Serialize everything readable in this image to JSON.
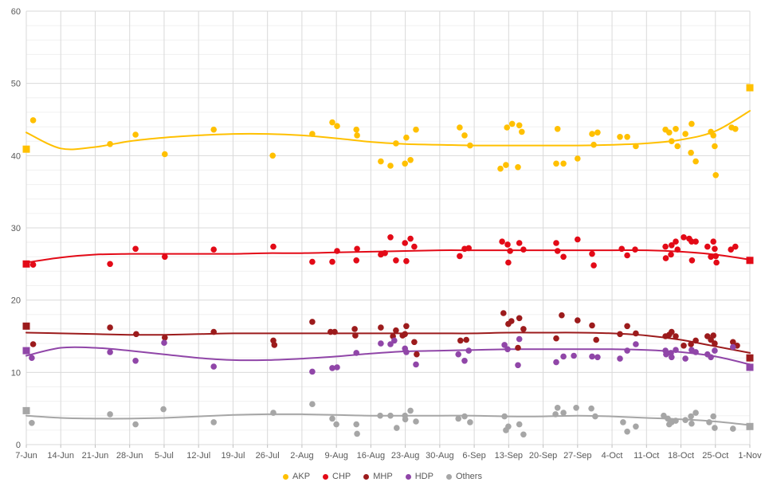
{
  "chart_data": {
    "type": "scatter",
    "title": "",
    "grid": "on",
    "legend_position": "bottom",
    "x_axis": {
      "tick_labels": [
        "7-Jun",
        "14-Jun",
        "21-Jun",
        "28-Jun",
        "5-Jul",
        "12-Jul",
        "19-Jul",
        "26-Jul",
        "2-Aug",
        "9-Aug",
        "16-Aug",
        "23-Aug",
        "30-Aug",
        "6-Sep",
        "13-Sep",
        "20-Sep",
        "27-Sep",
        "4-Oct",
        "11-Oct",
        "18-Oct",
        "25-Oct",
        "1-Nov"
      ]
    },
    "y_axis": {
      "min": 0,
      "max": 60,
      "major_step": 10,
      "minor_step": 2,
      "tick_labels": [
        "0",
        "10",
        "20",
        "30",
        "40",
        "50",
        "60"
      ]
    },
    "series": [
      {
        "name": "AKP",
        "color": "#FFC000",
        "trend": [
          43.2,
          41.0,
          41.2,
          42.0,
          42.5,
          42.8,
          43.0,
          43.0,
          42.8,
          42.4,
          41.9,
          41.6,
          41.5,
          41.4,
          41.4,
          41.4,
          41.4,
          41.5,
          41.7,
          42.2,
          43.4,
          46.2
        ],
        "results": [
          [
            0,
            40.9
          ],
          [
            21,
            49.4
          ]
        ],
        "points": [
          [
            0.2,
            44.9
          ],
          [
            2.43,
            41.6
          ],
          [
            3.17,
            42.9
          ],
          [
            4.02,
            40.2
          ],
          [
            5.44,
            43.6
          ],
          [
            7.15,
            40.0
          ],
          [
            8.3,
            43.0
          ],
          [
            8.88,
            44.6
          ],
          [
            9.02,
            44.1
          ],
          [
            9.58,
            43.6
          ],
          [
            9.6,
            42.8
          ],
          [
            10.29,
            39.2
          ],
          [
            10.57,
            38.6
          ],
          [
            10.73,
            41.7
          ],
          [
            10.99,
            38.9
          ],
          [
            11.03,
            42.5
          ],
          [
            11.15,
            39.4
          ],
          [
            11.31,
            43.6
          ],
          [
            12.58,
            43.9
          ],
          [
            12.72,
            42.8
          ],
          [
            12.88,
            41.4
          ],
          [
            13.76,
            38.2
          ],
          [
            13.92,
            38.7
          ],
          [
            13.95,
            43.9
          ],
          [
            14.1,
            44.4
          ],
          [
            14.27,
            38.4
          ],
          [
            14.31,
            44.2
          ],
          [
            14.38,
            43.3
          ],
          [
            15.38,
            38.9
          ],
          [
            15.42,
            43.7
          ],
          [
            15.59,
            38.9
          ],
          [
            16.0,
            39.6
          ],
          [
            16.42,
            43.0
          ],
          [
            16.47,
            41.5
          ],
          [
            16.58,
            43.2
          ],
          [
            17.23,
            42.6
          ],
          [
            17.44,
            42.6
          ],
          [
            17.69,
            41.3
          ],
          [
            18.55,
            43.6
          ],
          [
            18.66,
            43.2
          ],
          [
            18.73,
            42.0
          ],
          [
            18.85,
            43.7
          ],
          [
            18.9,
            41.3
          ],
          [
            19.13,
            43.0
          ],
          [
            19.29,
            40.4
          ],
          [
            19.31,
            44.4
          ],
          [
            19.43,
            39.2
          ],
          [
            19.87,
            43.3
          ],
          [
            19.94,
            42.8
          ],
          [
            19.98,
            41.3
          ],
          [
            20.01,
            37.3
          ],
          [
            20.47,
            43.9
          ],
          [
            20.58,
            43.7
          ]
        ]
      },
      {
        "name": "CHP",
        "color": "#E30A17",
        "trend": [
          25.2,
          25.9,
          26.3,
          26.4,
          26.4,
          26.4,
          26.4,
          26.5,
          26.5,
          26.6,
          26.7,
          26.8,
          26.9,
          26.9,
          26.9,
          26.9,
          26.9,
          26.9,
          26.9,
          26.7,
          26.3,
          25.6
        ],
        "results": [
          [
            0,
            25.0
          ],
          [
            21,
            25.5
          ]
        ],
        "points": [
          [
            0.2,
            24.9
          ],
          [
            2.43,
            25.0
          ],
          [
            3.17,
            27.1
          ],
          [
            4.02,
            26.0
          ],
          [
            5.44,
            27.0
          ],
          [
            7.17,
            27.4
          ],
          [
            8.3,
            25.3
          ],
          [
            8.88,
            25.3
          ],
          [
            9.02,
            26.8
          ],
          [
            9.58,
            25.5
          ],
          [
            9.6,
            27.1
          ],
          [
            10.29,
            26.3
          ],
          [
            10.41,
            26.5
          ],
          [
            10.57,
            28.7
          ],
          [
            10.73,
            25.5
          ],
          [
            10.99,
            27.9
          ],
          [
            11.03,
            25.4
          ],
          [
            11.15,
            28.5
          ],
          [
            11.26,
            27.4
          ],
          [
            12.58,
            26.1
          ],
          [
            12.72,
            27.1
          ],
          [
            12.84,
            27.2
          ],
          [
            13.81,
            28.1
          ],
          [
            13.97,
            27.7
          ],
          [
            13.99,
            25.2
          ],
          [
            14.04,
            26.8
          ],
          [
            14.31,
            27.9
          ],
          [
            14.43,
            27.0
          ],
          [
            15.38,
            27.9
          ],
          [
            15.42,
            26.8
          ],
          [
            15.59,
            26.0
          ],
          [
            16.0,
            28.4
          ],
          [
            16.42,
            26.4
          ],
          [
            16.47,
            24.8
          ],
          [
            17.28,
            27.1
          ],
          [
            17.44,
            26.2
          ],
          [
            17.67,
            27.0
          ],
          [
            18.55,
            27.4
          ],
          [
            18.56,
            25.8
          ],
          [
            18.71,
            26.3
          ],
          [
            18.73,
            27.6
          ],
          [
            18.85,
            28.1
          ],
          [
            18.9,
            27.0
          ],
          [
            19.08,
            28.7
          ],
          [
            19.24,
            28.5
          ],
          [
            19.31,
            28.1
          ],
          [
            19.32,
            25.5
          ],
          [
            19.43,
            28.1
          ],
          [
            19.77,
            27.4
          ],
          [
            19.87,
            26.0
          ],
          [
            19.94,
            28.1
          ],
          [
            19.98,
            27.1
          ],
          [
            20.01,
            26.1
          ],
          [
            20.03,
            25.2
          ],
          [
            20.45,
            27.0
          ],
          [
            20.58,
            27.4
          ]
        ]
      },
      {
        "name": "MHP",
        "color": "#9C1B1C",
        "trend": [
          15.5,
          15.4,
          15.3,
          15.2,
          15.2,
          15.3,
          15.4,
          15.4,
          15.4,
          15.4,
          15.4,
          15.4,
          15.4,
          15.4,
          15.5,
          15.5,
          15.5,
          15.4,
          15.1,
          14.5,
          13.6,
          12.7
        ],
        "results": [
          [
            0,
            16.4
          ],
          [
            21,
            12.0
          ]
        ],
        "points": [
          [
            0.2,
            13.9
          ],
          [
            2.43,
            16.2
          ],
          [
            3.19,
            15.3
          ],
          [
            4.02,
            14.8
          ],
          [
            5.44,
            15.6
          ],
          [
            7.17,
            14.4
          ],
          [
            7.2,
            13.8
          ],
          [
            8.3,
            17.0
          ],
          [
            8.83,
            15.6
          ],
          [
            8.95,
            15.6
          ],
          [
            9.53,
            16.0
          ],
          [
            9.55,
            15.1
          ],
          [
            10.29,
            16.2
          ],
          [
            10.64,
            15.0
          ],
          [
            10.73,
            15.8
          ],
          [
            10.92,
            15.1
          ],
          [
            10.99,
            15.3
          ],
          [
            11.03,
            16.4
          ],
          [
            11.26,
            14.2
          ],
          [
            11.33,
            12.5
          ],
          [
            12.6,
            14.4
          ],
          [
            12.77,
            14.5
          ],
          [
            13.85,
            18.2
          ],
          [
            13.99,
            16.7
          ],
          [
            14.08,
            17.1
          ],
          [
            14.27,
            13.4
          ],
          [
            14.31,
            17.5
          ],
          [
            14.43,
            16.0
          ],
          [
            15.38,
            14.7
          ],
          [
            15.54,
            17.9
          ],
          [
            16.0,
            17.2
          ],
          [
            16.42,
            16.5
          ],
          [
            16.54,
            14.5
          ],
          [
            17.23,
            15.3
          ],
          [
            17.44,
            16.4
          ],
          [
            17.69,
            15.4
          ],
          [
            18.55,
            15.0
          ],
          [
            18.66,
            15.2
          ],
          [
            18.73,
            15.6
          ],
          [
            18.85,
            15.0
          ],
          [
            19.08,
            13.7
          ],
          [
            19.29,
            13.9
          ],
          [
            19.43,
            14.4
          ],
          [
            19.77,
            15.0
          ],
          [
            19.87,
            14.5
          ],
          [
            19.94,
            15.1
          ],
          [
            19.98,
            14.0
          ],
          [
            20.51,
            14.2
          ],
          [
            20.63,
            13.7
          ]
        ]
      },
      {
        "name": "HDP",
        "color": "#9046A8",
        "trend": [
          12.3,
          13.4,
          13.4,
          13.0,
          12.5,
          12.0,
          11.7,
          11.7,
          11.9,
          12.2,
          12.6,
          12.9,
          13.0,
          13.1,
          13.2,
          13.2,
          13.2,
          13.2,
          13.1,
          12.8,
          12.2,
          11.1
        ],
        "results": [
          [
            0,
            13.0
          ],
          [
            21,
            10.7
          ]
        ],
        "points": [
          [
            0.16,
            12.0
          ],
          [
            2.43,
            12.8
          ],
          [
            3.17,
            11.6
          ],
          [
            4.0,
            14.1
          ],
          [
            5.44,
            10.8
          ],
          [
            8.3,
            10.1
          ],
          [
            8.88,
            10.6
          ],
          [
            9.02,
            10.7
          ],
          [
            9.58,
            12.7
          ],
          [
            10.29,
            14.0
          ],
          [
            10.57,
            13.9
          ],
          [
            10.68,
            14.4
          ],
          [
            10.99,
            13.3
          ],
          [
            11.03,
            12.8
          ],
          [
            11.31,
            11.1
          ],
          [
            12.54,
            12.5
          ],
          [
            12.72,
            11.6
          ],
          [
            12.84,
            13.0
          ],
          [
            13.88,
            13.8
          ],
          [
            13.97,
            13.2
          ],
          [
            14.27,
            11.0
          ],
          [
            14.31,
            14.6
          ],
          [
            15.38,
            11.4
          ],
          [
            15.59,
            12.2
          ],
          [
            15.89,
            12.3
          ],
          [
            16.42,
            12.2
          ],
          [
            16.58,
            12.1
          ],
          [
            17.23,
            11.9
          ],
          [
            17.44,
            13.0
          ],
          [
            17.69,
            13.9
          ],
          [
            18.55,
            13.0
          ],
          [
            18.57,
            12.5
          ],
          [
            18.71,
            12.7
          ],
          [
            18.73,
            12.1
          ],
          [
            18.85,
            13.1
          ],
          [
            19.13,
            11.9
          ],
          [
            19.31,
            13.1
          ],
          [
            19.43,
            12.8
          ],
          [
            19.77,
            12.5
          ],
          [
            19.87,
            12.1
          ],
          [
            19.98,
            13.0
          ],
          [
            20.51,
            13.5
          ]
        ]
      },
      {
        "name": "Others",
        "color": "#A6A6A6",
        "trend": [
          4.0,
          3.7,
          3.6,
          3.6,
          3.7,
          3.9,
          4.1,
          4.2,
          4.2,
          4.1,
          4.0,
          4.0,
          4.0,
          4.0,
          3.9,
          3.9,
          4.0,
          3.9,
          3.7,
          3.5,
          3.2,
          2.7
        ],
        "results": [
          [
            0,
            4.7
          ],
          [
            21,
            2.5
          ]
        ],
        "points": [
          [
            0.16,
            3.0
          ],
          [
            2.43,
            4.2
          ],
          [
            3.17,
            2.8
          ],
          [
            3.98,
            4.9
          ],
          [
            5.44,
            3.1
          ],
          [
            7.17,
            4.4
          ],
          [
            8.3,
            5.6
          ],
          [
            8.88,
            3.6
          ],
          [
            9.0,
            2.8
          ],
          [
            9.58,
            2.8
          ],
          [
            9.6,
            1.5
          ],
          [
            10.27,
            4.0
          ],
          [
            10.57,
            4.0
          ],
          [
            10.75,
            2.3
          ],
          [
            10.99,
            4.0
          ],
          [
            11.0,
            3.5
          ],
          [
            11.15,
            4.7
          ],
          [
            11.31,
            3.2
          ],
          [
            12.54,
            3.6
          ],
          [
            12.72,
            3.9
          ],
          [
            12.88,
            3.1
          ],
          [
            13.88,
            3.9
          ],
          [
            13.92,
            2.0
          ],
          [
            13.99,
            2.5
          ],
          [
            14.31,
            2.8
          ],
          [
            14.43,
            1.4
          ],
          [
            15.36,
            4.2
          ],
          [
            15.42,
            5.1
          ],
          [
            15.59,
            4.4
          ],
          [
            15.96,
            5.1
          ],
          [
            16.4,
            5.0
          ],
          [
            16.51,
            3.9
          ],
          [
            17.32,
            3.1
          ],
          [
            17.44,
            1.8
          ],
          [
            17.69,
            2.5
          ],
          [
            18.5,
            4.0
          ],
          [
            18.62,
            3.6
          ],
          [
            18.66,
            2.8
          ],
          [
            18.73,
            3.1
          ],
          [
            18.85,
            3.3
          ],
          [
            19.13,
            3.4
          ],
          [
            19.29,
            3.9
          ],
          [
            19.31,
            2.9
          ],
          [
            19.43,
            4.4
          ],
          [
            19.82,
            3.1
          ],
          [
            19.94,
            3.9
          ],
          [
            19.98,
            2.3
          ],
          [
            20.51,
            2.2
          ]
        ]
      }
    ],
    "style": {
      "axis_text_color": "#595959",
      "major_grid_color": "#D9D9D9",
      "minor_grid_color": "#F0F0F0",
      "tick_color": "#BFBFBF"
    }
  }
}
